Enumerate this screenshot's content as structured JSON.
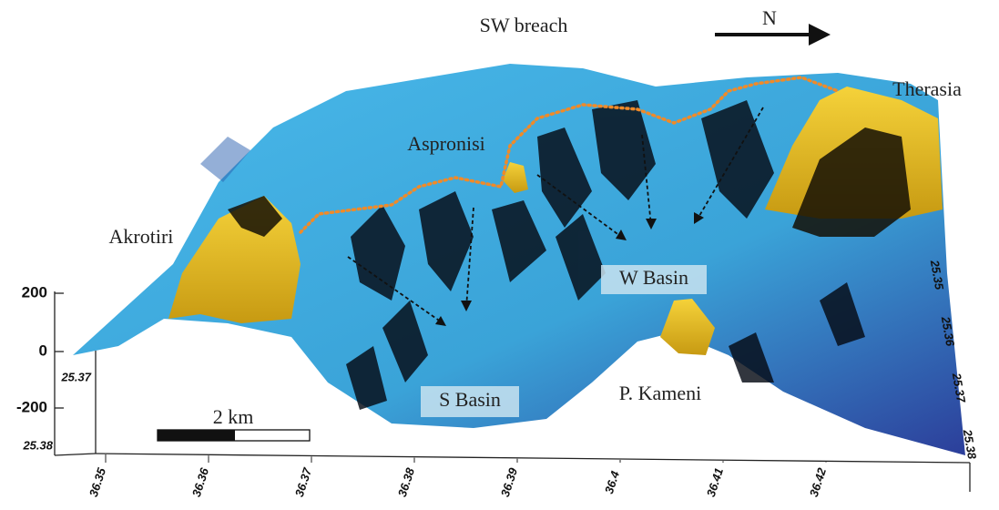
{
  "header": {
    "title": "SW breach",
    "north": "N"
  },
  "places": {
    "therasia": "Therasia",
    "aspronisi": "Aspronisi",
    "akrotiri": "Akrotiri",
    "w_basin": "W Basin",
    "s_basin": "S Basin",
    "p_kameni": "P. Kameni"
  },
  "scale_bar": "2 km",
  "z_axis": [
    "200",
    "0",
    "-200"
  ],
  "left_axis": [
    "25.37",
    "25.38"
  ],
  "x_axis": [
    "36.35",
    "36.36",
    "36.37",
    "36.38",
    "36.39",
    "36.4",
    "36.41",
    "36.42"
  ],
  "right_axis": [
    "25.35",
    "25.36",
    "25.37",
    "25.38"
  ]
}
